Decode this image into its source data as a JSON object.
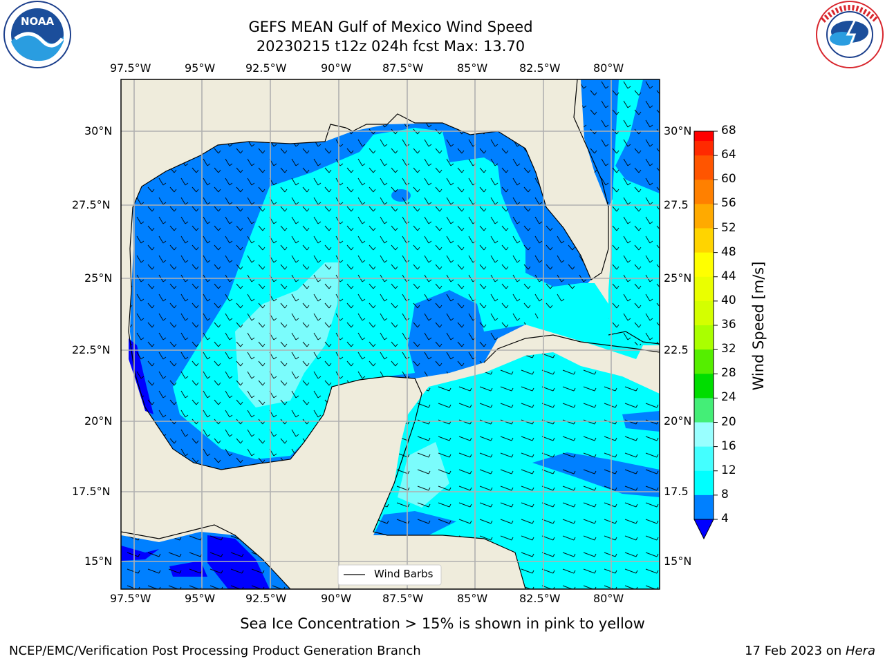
{
  "title": {
    "line1": "GEFS MEAN Gulf of Mexico Wind Speed",
    "line2": "20230215 t12z 024h fcst   Max: 13.70"
  },
  "subtitle": "Sea Ice Concentration > 15% is shown in pink to yellow",
  "footer": {
    "left": "NCEP/EMC/Verification Post Processing Product Generation Branch",
    "right_prefix": "17 Feb 2023 on ",
    "right_host": "Hera"
  },
  "logos": {
    "noara_text": "NOAA",
    "noaa_ring": "NATIONAL OCEANIC AND ATMOSPHERIC ADMINISTRATION",
    "noaa_ring2": "U.S. DEPARTMENT OF COMMERCE",
    "nws_ring": "NATIONAL WEATHER SERVICE"
  },
  "map": {
    "lon_ticks": [
      "97.5°W",
      "95°W",
      "92.5°W",
      "90°W",
      "87.5°W",
      "85°W",
      "82.5°W",
      "80°W"
    ],
    "lat_ticks_left": [
      "30°N",
      "27.5°N",
      "25°N",
      "22.5°N",
      "20°N",
      "17.5°N",
      "15°N"
    ],
    "lat_ticks_right": [
      "30°N",
      "27.5",
      "25°N",
      "22.5",
      "20°N",
      "17.5",
      "15°N"
    ],
    "legend_label": "Wind Barbs",
    "land_color": "#efecdc",
    "grid_color": "#b0b0b0"
  },
  "colorbar": {
    "label": "Wind Speed [m/s]",
    "ticks": [
      "68",
      "64",
      "60",
      "56",
      "52",
      "48",
      "44",
      "40",
      "36",
      "32",
      "28",
      "24",
      "20",
      "16",
      "12",
      "8",
      "4"
    ],
    "colors": [
      "#ff0000",
      "#ff2a00",
      "#ff5500",
      "#ff8000",
      "#ffaa00",
      "#ffd400",
      "#ffff00",
      "#eaff00",
      "#d4ff00",
      "#aaff00",
      "#55ee00",
      "#00dd00",
      "#44ee77",
      "#99ffff",
      "#44ffff",
      "#00ffff",
      "#0080ff"
    ],
    "under_color": "#0000ff"
  }
}
